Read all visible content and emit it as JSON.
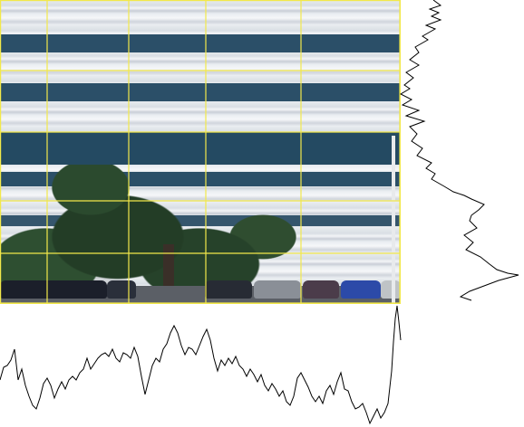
{
  "image": {
    "subject": "office-building-facade",
    "grid_color": "#f2e84a",
    "profile_color": "#000000",
    "band_color": "#2b4f68",
    "tree_color": "#2b4a2e"
  },
  "grid": {
    "vertical_lines": 5,
    "horizontal_lines": 5
  }
}
